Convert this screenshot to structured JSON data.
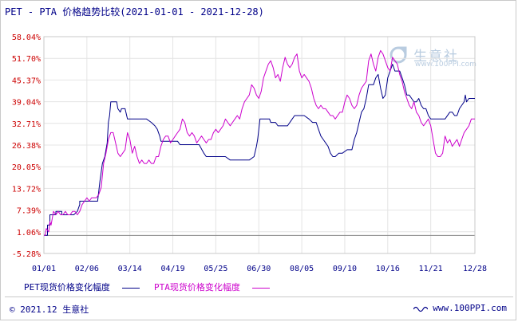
{
  "title": "PET - PTA 价格趋势比较(2021-01-01 - 2021-12-28)",
  "colors": {
    "pet": "#000088",
    "pta": "#cc00cc",
    "ytick": "#cc0000",
    "xtick": "#000088",
    "grid": "#e4e4e4"
  },
  "legend": {
    "pet": "PET现货价格变化幅度",
    "pta": "PTA现货价格变化幅度"
  },
  "watermark": {
    "name": "生意社",
    "url": "www.100PPI.com"
  },
  "footer": {
    "left": "© 2021.12 生意社",
    "right": "www.100PPI.com",
    "icon": "wave-icon"
  },
  "chart_data": {
    "type": "line",
    "title": "PET - PTA 价格趋势比较(2021-01-01 - 2021-12-28)",
    "xlabel": "",
    "ylabel": "",
    "x_tick_labels": [
      "01/01",
      "02/06",
      "03/14",
      "04/19",
      "05/25",
      "06/30",
      "08/05",
      "09/10",
      "10/16",
      "11/21",
      "12/28"
    ],
    "y_tick_labels": [
      "-5.28%",
      "1.06%",
      "7.39%",
      "13.72%",
      "20.05%",
      "26.38%",
      "32.71%",
      "39.04%",
      "45.37%",
      "51.70%",
      "58.04%"
    ],
    "ylim": [
      -5.28,
      58.04
    ],
    "grid": true,
    "legend_position": "bottom",
    "x_days": [
      0,
      36,
      72,
      108,
      144,
      180,
      216,
      252,
      288,
      324,
      361
    ],
    "series": [
      {
        "name": "PET现货价格变化幅度",
        "color": "#000088",
        "points": [
          [
            0,
            0
          ],
          [
            3,
            0
          ],
          [
            3,
            3
          ],
          [
            5,
            3
          ],
          [
            5,
            6
          ],
          [
            10,
            6
          ],
          [
            10,
            7
          ],
          [
            15,
            7
          ],
          [
            15,
            6
          ],
          [
            20,
            6
          ],
          [
            20,
            6
          ],
          [
            25,
            6
          ],
          [
            28,
            7
          ],
          [
            30,
            9
          ],
          [
            30,
            10
          ],
          [
            35,
            10
          ],
          [
            38,
            10
          ],
          [
            42,
            10
          ],
          [
            45,
            10
          ],
          [
            47,
            16
          ],
          [
            49,
            21
          ],
          [
            51,
            23
          ],
          [
            53,
            27
          ],
          [
            54,
            33
          ],
          [
            55,
            35
          ],
          [
            56,
            39
          ],
          [
            58,
            39
          ],
          [
            61,
            39
          ],
          [
            62,
            37
          ],
          [
            64,
            36
          ],
          [
            65,
            37
          ],
          [
            67,
            37
          ],
          [
            68,
            37
          ],
          [
            70,
            34
          ],
          [
            74,
            34
          ],
          [
            80,
            34
          ],
          [
            86,
            34
          ],
          [
            90,
            33
          ],
          [
            93,
            32
          ],
          [
            95,
            31
          ],
          [
            97,
            29
          ],
          [
            98,
            27.5
          ],
          [
            100,
            27.5
          ],
          [
            104,
            27.5
          ],
          [
            108,
            27.5
          ],
          [
            112,
            27.5
          ],
          [
            114,
            26.5
          ],
          [
            119,
            26.5
          ],
          [
            125,
            26.5
          ],
          [
            130,
            26.5
          ],
          [
            134,
            24
          ],
          [
            136,
            23
          ],
          [
            142,
            23
          ],
          [
            148,
            23
          ],
          [
            152,
            23
          ],
          [
            156,
            22
          ],
          [
            160,
            22
          ],
          [
            166,
            22
          ],
          [
            172,
            22
          ],
          [
            176,
            23
          ],
          [
            178,
            26
          ],
          [
            179,
            28
          ],
          [
            180,
            31
          ],
          [
            181,
            34
          ],
          [
            185,
            34
          ],
          [
            189,
            34
          ],
          [
            190,
            33
          ],
          [
            194,
            33
          ],
          [
            196,
            32
          ],
          [
            200,
            32
          ],
          [
            204,
            32
          ],
          [
            208,
            34
          ],
          [
            210,
            35
          ],
          [
            214,
            35
          ],
          [
            218,
            35
          ],
          [
            222,
            34
          ],
          [
            225,
            33
          ],
          [
            228,
            33
          ],
          [
            230,
            31
          ],
          [
            232,
            29
          ],
          [
            234,
            28
          ],
          [
            236,
            27
          ],
          [
            238,
            26
          ],
          [
            240,
            24
          ],
          [
            242,
            23
          ],
          [
            244,
            23
          ],
          [
            247,
            24
          ],
          [
            250,
            24
          ],
          [
            254,
            25
          ],
          [
            258,
            25
          ],
          [
            260,
            28
          ],
          [
            262,
            30
          ],
          [
            264,
            33
          ],
          [
            266,
            36
          ],
          [
            268,
            37
          ],
          [
            270,
            40
          ],
          [
            272,
            44
          ],
          [
            274,
            44
          ],
          [
            276,
            44
          ],
          [
            278,
            46
          ],
          [
            280,
            47
          ],
          [
            282,
            43
          ],
          [
            284,
            40
          ],
          [
            286,
            41
          ],
          [
            288,
            46
          ],
          [
            290,
            48
          ],
          [
            292,
            50
          ],
          [
            294,
            48
          ],
          [
            296,
            48
          ],
          [
            298,
            48
          ],
          [
            300,
            46
          ],
          [
            302,
            44
          ],
          [
            304,
            41
          ],
          [
            306,
            41
          ],
          [
            308,
            40
          ],
          [
            310,
            39
          ],
          [
            312,
            39
          ],
          [
            314,
            40
          ],
          [
            316,
            38
          ],
          [
            318,
            37
          ],
          [
            320,
            37
          ],
          [
            322,
            35
          ],
          [
            324,
            34
          ],
          [
            328,
            34
          ],
          [
            332,
            34
          ],
          [
            336,
            34
          ],
          [
            340,
            36
          ],
          [
            342,
            36
          ],
          [
            344,
            35
          ],
          [
            346,
            35
          ],
          [
            348,
            37
          ],
          [
            350,
            38
          ],
          [
            352,
            39
          ],
          [
            353,
            41
          ],
          [
            354,
            39
          ],
          [
            356,
            40
          ],
          [
            358,
            40
          ],
          [
            361,
            40
          ]
        ]
      },
      {
        "name": "PTA现货价格变化幅度",
        "color": "#cc00cc",
        "points": [
          [
            0,
            0
          ],
          [
            1,
            0
          ],
          [
            2,
            2
          ],
          [
            4,
            1
          ],
          [
            5,
            4
          ],
          [
            6,
            3
          ],
          [
            8,
            7
          ],
          [
            10,
            6
          ],
          [
            12,
            7
          ],
          [
            14,
            6
          ],
          [
            16,
            6
          ],
          [
            18,
            7
          ],
          [
            20,
            6
          ],
          [
            22,
            6
          ],
          [
            24,
            7
          ],
          [
            26,
            7
          ],
          [
            28,
            6
          ],
          [
            30,
            7
          ],
          [
            32,
            9
          ],
          [
            34,
            10
          ],
          [
            36,
            11
          ],
          [
            38,
            10
          ],
          [
            40,
            11
          ],
          [
            42,
            11
          ],
          [
            44,
            11
          ],
          [
            46,
            12
          ],
          [
            48,
            14
          ],
          [
            50,
            21
          ],
          [
            52,
            24
          ],
          [
            54,
            28
          ],
          [
            56,
            30
          ],
          [
            58,
            30
          ],
          [
            60,
            27
          ],
          [
            62,
            24
          ],
          [
            64,
            23
          ],
          [
            66,
            24
          ],
          [
            68,
            25
          ],
          [
            70,
            30
          ],
          [
            72,
            28
          ],
          [
            74,
            24
          ],
          [
            76,
            26
          ],
          [
            78,
            23
          ],
          [
            80,
            21
          ],
          [
            82,
            22
          ],
          [
            84,
            21
          ],
          [
            86,
            21
          ],
          [
            88,
            22
          ],
          [
            90,
            21
          ],
          [
            92,
            21
          ],
          [
            94,
            23
          ],
          [
            96,
            23
          ],
          [
            98,
            26
          ],
          [
            100,
            28
          ],
          [
            102,
            29
          ],
          [
            104,
            29
          ],
          [
            106,
            27
          ],
          [
            108,
            28
          ],
          [
            110,
            29
          ],
          [
            112,
            30
          ],
          [
            114,
            31
          ],
          [
            116,
            34
          ],
          [
            118,
            33
          ],
          [
            120,
            30
          ],
          [
            122,
            29
          ],
          [
            124,
            30
          ],
          [
            126,
            29
          ],
          [
            128,
            27
          ],
          [
            130,
            28
          ],
          [
            132,
            29
          ],
          [
            134,
            28
          ],
          [
            136,
            27
          ],
          [
            138,
            28
          ],
          [
            140,
            28
          ],
          [
            142,
            30
          ],
          [
            144,
            31
          ],
          [
            146,
            30
          ],
          [
            148,
            31
          ],
          [
            150,
            32
          ],
          [
            152,
            34
          ],
          [
            154,
            33
          ],
          [
            156,
            32
          ],
          [
            158,
            33
          ],
          [
            160,
            34
          ],
          [
            162,
            35
          ],
          [
            164,
            34
          ],
          [
            166,
            37
          ],
          [
            168,
            39
          ],
          [
            170,
            40
          ],
          [
            172,
            41
          ],
          [
            174,
            44
          ],
          [
            176,
            43
          ],
          [
            178,
            41
          ],
          [
            180,
            40
          ],
          [
            182,
            42
          ],
          [
            184,
            46
          ],
          [
            186,
            48
          ],
          [
            188,
            50
          ],
          [
            190,
            51
          ],
          [
            192,
            49
          ],
          [
            194,
            46
          ],
          [
            196,
            47
          ],
          [
            198,
            45
          ],
          [
            200,
            49
          ],
          [
            202,
            52
          ],
          [
            204,
            50
          ],
          [
            206,
            49
          ],
          [
            208,
            50
          ],
          [
            210,
            52
          ],
          [
            212,
            53
          ],
          [
            214,
            48
          ],
          [
            216,
            46
          ],
          [
            218,
            47
          ],
          [
            220,
            46
          ],
          [
            222,
            45
          ],
          [
            224,
            43
          ],
          [
            226,
            40
          ],
          [
            228,
            38
          ],
          [
            230,
            37
          ],
          [
            232,
            38
          ],
          [
            234,
            37
          ],
          [
            236,
            37
          ],
          [
            238,
            36
          ],
          [
            240,
            35
          ],
          [
            242,
            35
          ],
          [
            244,
            34
          ],
          [
            246,
            35
          ],
          [
            248,
            36
          ],
          [
            250,
            36
          ],
          [
            252,
            39
          ],
          [
            254,
            41
          ],
          [
            256,
            40
          ],
          [
            258,
            38
          ],
          [
            260,
            37
          ],
          [
            262,
            38
          ],
          [
            264,
            41
          ],
          [
            266,
            43
          ],
          [
            268,
            44
          ],
          [
            270,
            45
          ],
          [
            272,
            51
          ],
          [
            274,
            53
          ],
          [
            276,
            50
          ],
          [
            278,
            48
          ],
          [
            280,
            52
          ],
          [
            282,
            54
          ],
          [
            284,
            53
          ],
          [
            286,
            51
          ],
          [
            288,
            49
          ],
          [
            290,
            48
          ],
          [
            292,
            52
          ],
          [
            294,
            51
          ],
          [
            296,
            50
          ],
          [
            298,
            47
          ],
          [
            300,
            45
          ],
          [
            302,
            42
          ],
          [
            304,
            40
          ],
          [
            306,
            38
          ],
          [
            308,
            37
          ],
          [
            310,
            39
          ],
          [
            312,
            36
          ],
          [
            314,
            35
          ],
          [
            316,
            33
          ],
          [
            318,
            32
          ],
          [
            320,
            33
          ],
          [
            322,
            34
          ],
          [
            324,
            32
          ],
          [
            326,
            28
          ],
          [
            328,
            24
          ],
          [
            330,
            23
          ],
          [
            332,
            23
          ],
          [
            334,
            24
          ],
          [
            336,
            29
          ],
          [
            338,
            27
          ],
          [
            340,
            28
          ],
          [
            342,
            26
          ],
          [
            344,
            27
          ],
          [
            346,
            28
          ],
          [
            348,
            26
          ],
          [
            350,
            28
          ],
          [
            352,
            30
          ],
          [
            354,
            31
          ],
          [
            356,
            32
          ],
          [
            358,
            34
          ],
          [
            361,
            34
          ]
        ]
      }
    ]
  }
}
